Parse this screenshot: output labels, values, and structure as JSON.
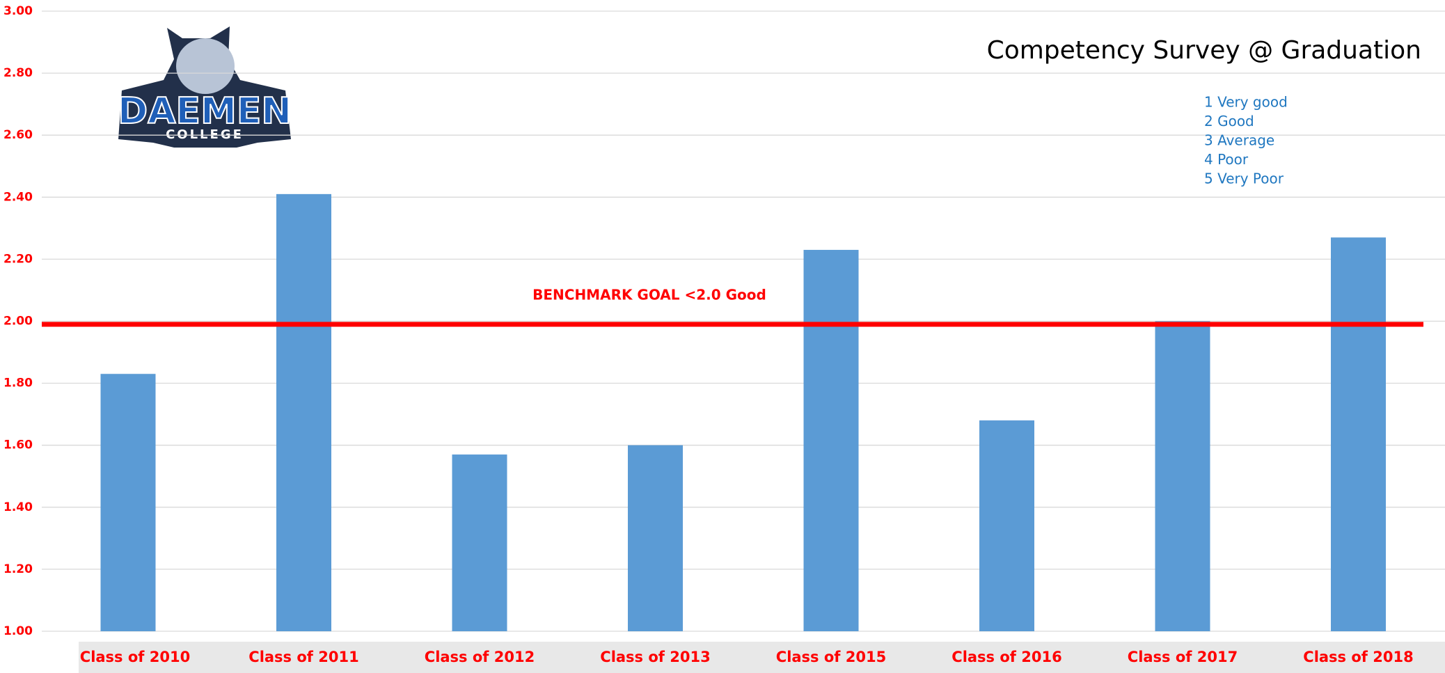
{
  "chart_data": {
    "type": "bar",
    "title": "Competency Survey @ Graduation",
    "categories": [
      "Class of 2010",
      "Class of 2011",
      "Class of 2012",
      "Class of 2013",
      "Class of 2015",
      "Class of 2016",
      "Class of 2017",
      "Class of 2018"
    ],
    "values": [
      1.83,
      2.41,
      1.57,
      1.6,
      2.23,
      1.68,
      2.0,
      2.27
    ],
    "color": "#5b9bd5",
    "ylim": [
      1,
      3
    ],
    "yticks": [
      {
        "value": 1,
        "label": "1.00"
      },
      {
        "value": 1.2,
        "label": "1.20"
      },
      {
        "value": 1.4,
        "label": "1.40"
      },
      {
        "value": 1.6,
        "label": "1.60"
      },
      {
        "value": 1.8,
        "label": "1.80"
      },
      {
        "value": 2,
        "label": "2.00"
      },
      {
        "value": 2.2,
        "label": "2.20"
      },
      {
        "value": 2.4,
        "label": "2.40"
      },
      {
        "value": 2.6,
        "label": "2.60"
      },
      {
        "value": 2.8,
        "label": "2.80"
      },
      {
        "value": 3,
        "label": "3.00"
      }
    ],
    "grid": true,
    "benchmark": {
      "value": 1.99,
      "label": "BENCHMARK GOAL <2.0 Good",
      "color": "#ff0000"
    },
    "scale_legend": [
      "1 Very good",
      "2 Good",
      "3 Average",
      "4 Poor",
      "5 Very Poor"
    ],
    "logo": {
      "name": "DAEMEN",
      "subtitle": "COLLEGE"
    }
  }
}
